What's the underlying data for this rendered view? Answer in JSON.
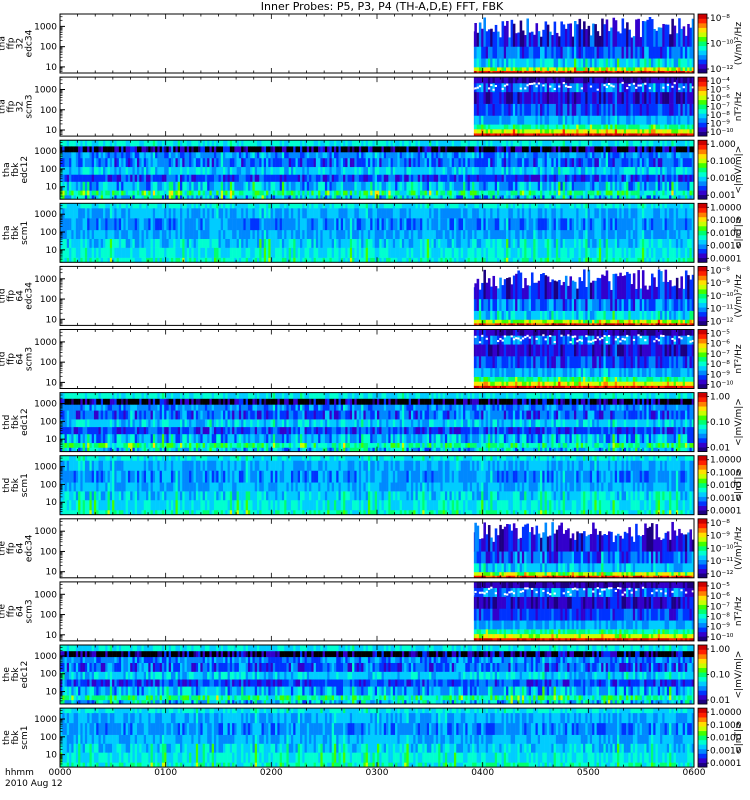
{
  "title": "Inner Probes: P5, P3, P4 (TH-A,D,E) FFT, FBK",
  "x_axis": {
    "caption_line1": "hhmm",
    "caption_line2": "2010 Aug 12",
    "ticks": [
      "0000",
      "0100",
      "0200",
      "0300",
      "0400",
      "0500",
      "0600"
    ],
    "range_minutes": [
      0,
      360
    ]
  },
  "colors": {
    "colormap": [
      "#1c0080",
      "#3300cc",
      "#0033ff",
      "#0088ff",
      "#00ccff",
      "#00ffd0",
      "#00ff70",
      "#40ff00",
      "#c8ff00",
      "#ffe000",
      "#ff8000",
      "#ff2000",
      "#cc0000"
    ],
    "frame": "#000000"
  },
  "chart_data": {
    "type": "heatmap",
    "panels": [
      {
        "label": [
          "tha",
          "ffp",
          "32",
          "edc34"
        ],
        "kind": "ffp-e",
        "data_start_minute": 235,
        "y_ticks": [
          "1000",
          "100",
          "10"
        ],
        "y_range": [
          5,
          4096
        ],
        "colorbar_ticks": [
          "10⁻⁸",
          "10⁻¹⁰",
          "10⁻¹²"
        ],
        "colorbar_units": "(V/m)²/Hz"
      },
      {
        "label": [
          "tha",
          "ffp",
          "32",
          "scm3"
        ],
        "kind": "ffp-b",
        "data_start_minute": 235,
        "y_ticks": [
          "1000",
          "100",
          "10"
        ],
        "y_range": [
          5,
          4096
        ],
        "colorbar_ticks": [
          "10⁻⁴",
          "10⁻⁵",
          "10⁻⁶",
          "10⁻⁷",
          "10⁻⁸",
          "10⁻⁹",
          "10⁻¹⁰"
        ],
        "colorbar_units": "nT²/Hz"
      },
      {
        "label": [
          "tha",
          "fbk",
          "edc12"
        ],
        "kind": "fbk-e",
        "data_start_minute": 0,
        "y_ticks": [
          "1000",
          "100",
          "10"
        ],
        "y_range": [
          2,
          4096
        ],
        "colorbar_ticks": [
          "1.000",
          "0.100",
          "0.010",
          "0.001"
        ],
        "colorbar_units": "<|mV/m|>"
      },
      {
        "label": [
          "tha",
          "fbk",
          "scm1"
        ],
        "kind": "fbk-b",
        "data_start_minute": 0,
        "y_ticks": [
          "1000",
          "100",
          "10"
        ],
        "y_range": [
          2,
          4096
        ],
        "colorbar_ticks": [
          "1.0000",
          "0.1000",
          "0.0100",
          "0.0010",
          "0.0001"
        ],
        "colorbar_units": "<|nT|>"
      },
      {
        "label": [
          "thd",
          "ffp",
          "64",
          "edc34"
        ],
        "kind": "ffp-e",
        "data_start_minute": 235,
        "y_ticks": [
          "1000",
          "100",
          "10"
        ],
        "y_range": [
          5,
          4096
        ],
        "colorbar_ticks": [
          "10⁻⁸",
          "10⁻⁹",
          "10⁻¹⁰",
          "10⁻¹¹",
          "10⁻¹²"
        ],
        "colorbar_units": "(V/m)²/Hz"
      },
      {
        "label": [
          "thd",
          "ffp",
          "64",
          "scm3"
        ],
        "kind": "ffp-b",
        "data_start_minute": 235,
        "y_ticks": [
          "1000",
          "100",
          "10"
        ],
        "y_range": [
          5,
          4096
        ],
        "colorbar_ticks": [
          "10⁻⁵",
          "10⁻⁶",
          "10⁻⁷",
          "10⁻⁸",
          "10⁻⁹",
          "10⁻¹⁰"
        ],
        "colorbar_units": "nT²/Hz"
      },
      {
        "label": [
          "thd",
          "fbk",
          "edc12"
        ],
        "kind": "fbk-e",
        "data_start_minute": 0,
        "y_ticks": [
          "1000",
          "100",
          "10"
        ],
        "y_range": [
          2,
          4096
        ],
        "colorbar_ticks": [
          "1.00",
          "0.10",
          "0.01"
        ],
        "colorbar_units": "<|mV/m|>"
      },
      {
        "label": [
          "thd",
          "fbk",
          "scm1"
        ],
        "kind": "fbk-b",
        "data_start_minute": 0,
        "y_ticks": [
          "1000",
          "100",
          "10"
        ],
        "y_range": [
          2,
          4096
        ],
        "colorbar_ticks": [
          "1.0000",
          "0.1000",
          "0.0100",
          "0.0010",
          "0.0001"
        ],
        "colorbar_units": "<|nT|>"
      },
      {
        "label": [
          "the",
          "ffp",
          "64",
          "edc34"
        ],
        "kind": "ffp-e",
        "data_start_minute": 235,
        "y_ticks": [
          "1000",
          "100",
          "10"
        ],
        "y_range": [
          5,
          4096
        ],
        "colorbar_ticks": [
          "10⁻⁸",
          "10⁻⁹",
          "10⁻¹⁰",
          "10⁻¹¹",
          "10⁻¹²"
        ],
        "colorbar_units": "(V/m)²/Hz"
      },
      {
        "label": [
          "the",
          "ffp",
          "64",
          "scm3"
        ],
        "kind": "ffp-b",
        "data_start_minute": 235,
        "y_ticks": [
          "1000",
          "100",
          "10"
        ],
        "y_range": [
          5,
          4096
        ],
        "colorbar_ticks": [
          "10⁻⁵",
          "10⁻⁶",
          "10⁻⁷",
          "10⁻⁸",
          "10⁻⁹",
          "10⁻¹⁰"
        ],
        "colorbar_units": "nT²/Hz"
      },
      {
        "label": [
          "the",
          "fbk",
          "edc12"
        ],
        "kind": "fbk-e",
        "data_start_minute": 0,
        "y_ticks": [
          "1000",
          "100",
          "10"
        ],
        "y_range": [
          2,
          4096
        ],
        "colorbar_ticks": [
          "1.00",
          "0.10",
          "0.01"
        ],
        "colorbar_units": "<|mV/m|>"
      },
      {
        "label": [
          "the",
          "fbk",
          "scm1"
        ],
        "kind": "fbk-b",
        "data_start_minute": 0,
        "y_ticks": [
          "1000",
          "100",
          "10"
        ],
        "y_range": [
          2,
          4096
        ],
        "colorbar_ticks": [
          "1.0000",
          "0.1000",
          "0.0100",
          "0.0010",
          "0.0001"
        ],
        "colorbar_units": "<|nT|>"
      }
    ]
  }
}
